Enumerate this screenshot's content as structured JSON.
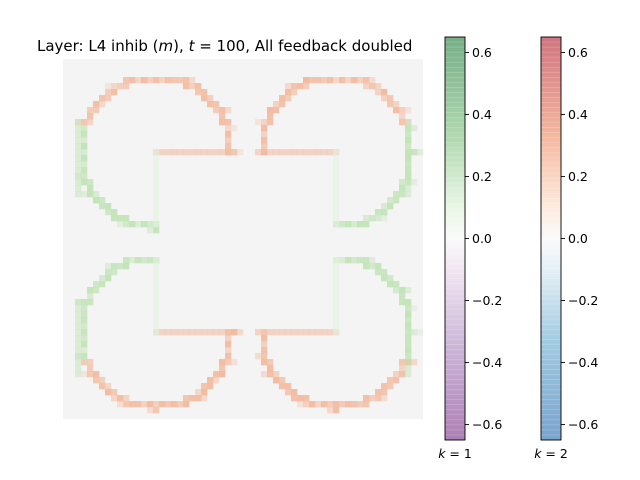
{
  "chart_data": {
    "type": "heatmap",
    "title_parts": {
      "prefix": "Layer: L4 inhib (",
      "var": "m",
      "mid": "), ",
      "tvar": "t",
      "teq": " = 100, All feedback doubled"
    },
    "grid": {
      "rows": 60,
      "cols": 60
    },
    "background_value": 0.0,
    "pattern": {
      "description_units": "grid cells",
      "arcs": [
        {
          "quadrant": "top-left",
          "center": [
            15,
            15
          ],
          "radius": 12.5,
          "open_side": "lower-right"
        },
        {
          "quadrant": "top-right",
          "center": [
            45,
            15
          ],
          "radius": 12.5,
          "open_side": "lower-left"
        },
        {
          "quadrant": "bottom-left",
          "center": [
            15,
            45
          ],
          "radius": 12.5,
          "open_side": "upper-right"
        },
        {
          "quadrant": "bottom-right",
          "center": [
            45,
            45
          ],
          "radius": 12.5,
          "open_side": "upper-left"
        }
      ],
      "k1_value": 0.15,
      "k2_value": 0.15
    },
    "colorbars": [
      {
        "label_var": "k",
        "label_eq": " = 1",
        "colormap": "PRGn",
        "vmin": -0.65,
        "vmax": 0.65,
        "ticks": [
          "0.6",
          "0.4",
          "0.2",
          "0.0",
          "−0.2",
          "−0.4",
          "−0.6"
        ],
        "tick_values": [
          0.6,
          0.4,
          0.2,
          0.0,
          -0.2,
          -0.4,
          -0.6
        ]
      },
      {
        "label_var": "k",
        "label_eq": " = 2",
        "colormap": "RdBu",
        "vmin": -0.65,
        "vmax": 0.65,
        "ticks": [
          "0.6",
          "0.4",
          "0.2",
          "0.0",
          "−0.2",
          "−0.4",
          "−0.6"
        ],
        "tick_values": [
          0.6,
          0.4,
          0.2,
          0.0,
          -0.2,
          -0.4,
          -0.6
        ]
      }
    ]
  }
}
